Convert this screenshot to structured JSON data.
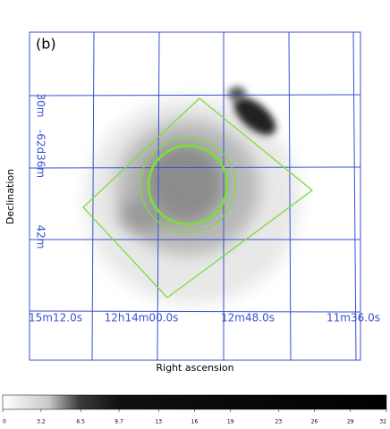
{
  "chart_data": {
    "type": "image",
    "panel_label": "(b)",
    "xlabel": "Right ascension",
    "ylabel": "Declination",
    "ra_labels": [
      "15m12.0s",
      "12h14m00.0s",
      "12m48.0s",
      "11m36.0s"
    ],
    "dec_labels": [
      "30m",
      "-62d36m",
      "42m"
    ],
    "clim": [
      0,
      32
    ],
    "cticks": [
      0,
      3.2,
      6.5,
      9.7,
      13,
      16,
      19,
      23,
      26,
      29,
      32
    ]
  }
}
